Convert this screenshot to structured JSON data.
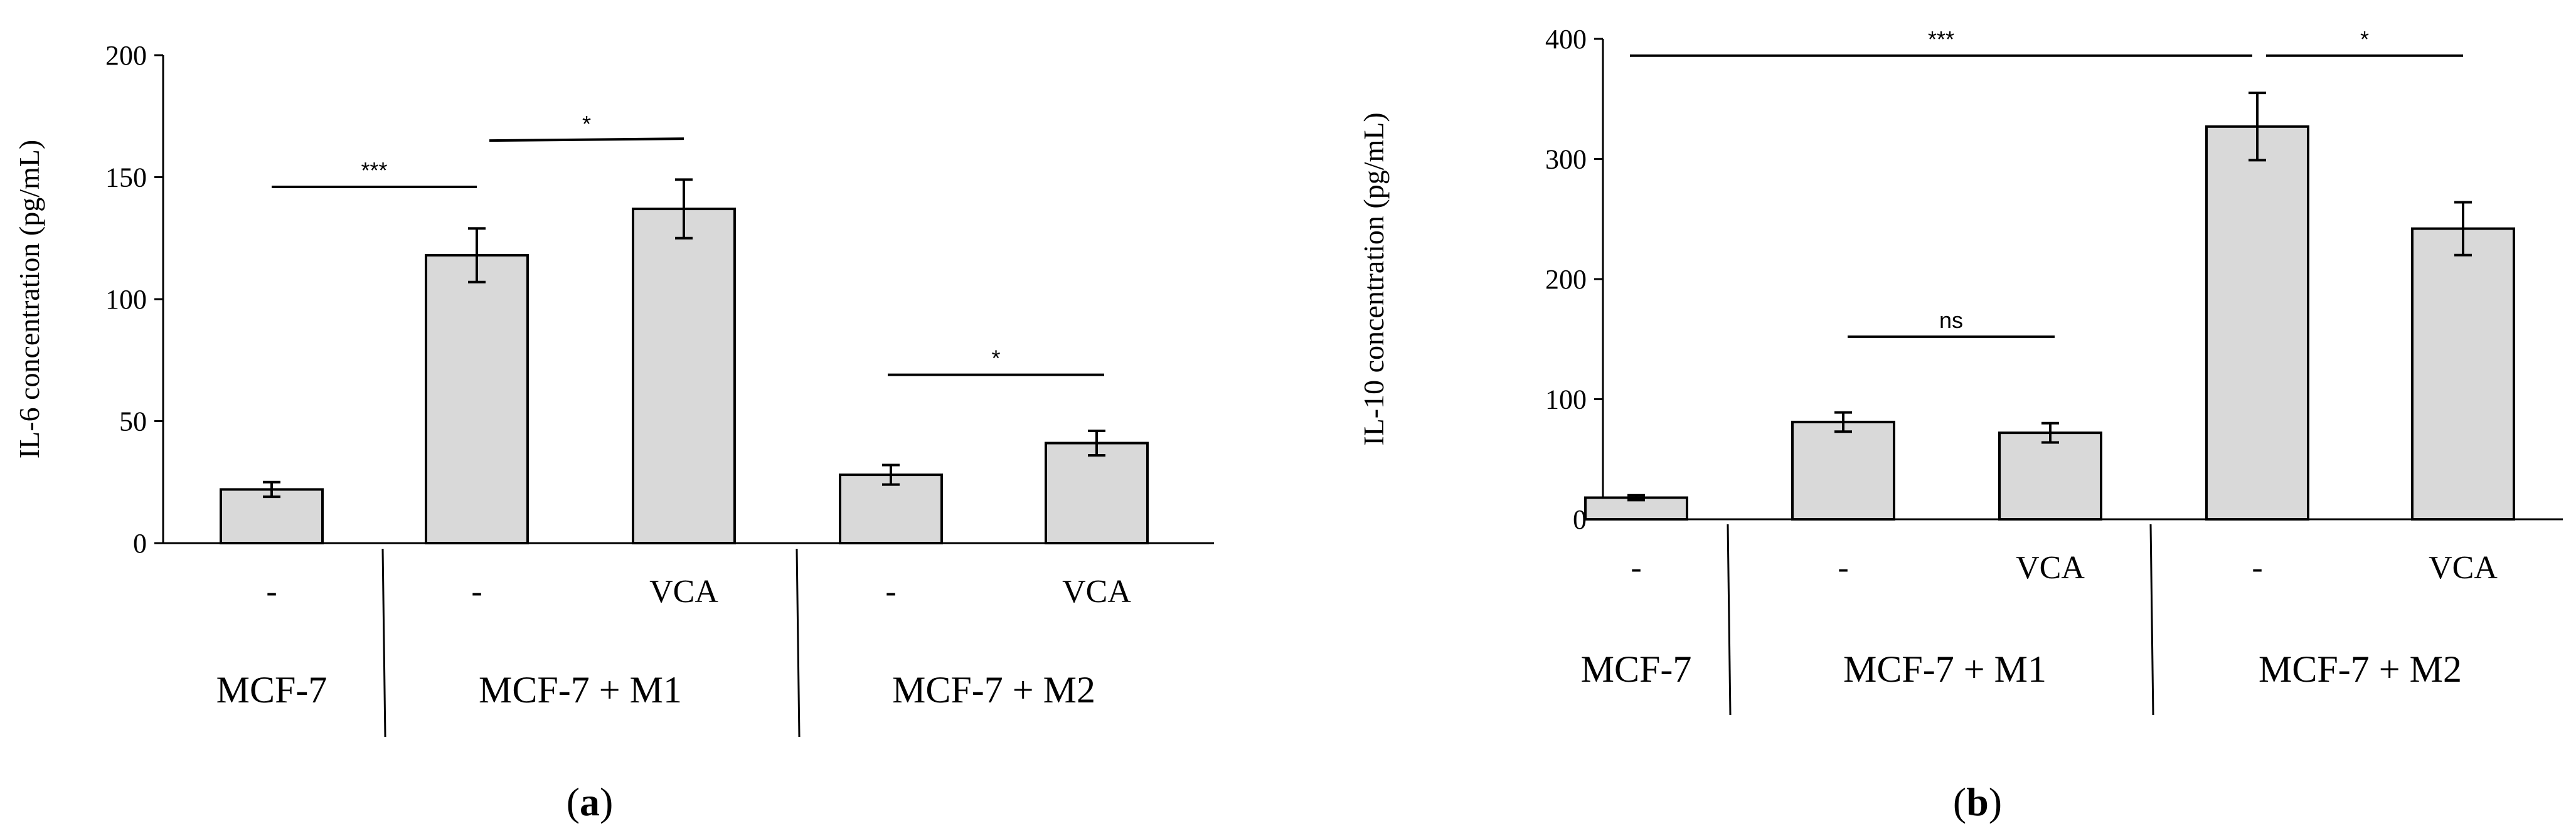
{
  "chart_data": [
    {
      "type": "bar",
      "panel_label": "a",
      "title": "",
      "xlabel": "",
      "ylabel": "IL-6 concentration (pg/mL)",
      "ylim": [
        0,
        200
      ],
      "yticks": [
        0,
        50,
        100,
        150,
        200
      ],
      "categories": [
        "-",
        "-",
        "VCA",
        "-",
        "VCA"
      ],
      "groups": [
        {
          "label": "MCF-7",
          "start": 0,
          "end": 0
        },
        {
          "label": "MCF-7 + M1",
          "start": 1,
          "end": 2
        },
        {
          "label": "MCF-7 + M2",
          "start": 3,
          "end": 4
        }
      ],
      "values": [
        22,
        118,
        137,
        28,
        41
      ],
      "errors": [
        3,
        11,
        12,
        4,
        5
      ],
      "significance": [
        {
          "label": "***",
          "from": 0,
          "to": 1,
          "y": 146
        },
        {
          "label": "*",
          "from": 1,
          "to": 2,
          "y": 165
        },
        {
          "label": "*",
          "from": 3,
          "to": 4,
          "y": 69
        }
      ],
      "bar_color": "#d9d9d9"
    },
    {
      "type": "bar",
      "panel_label": "b",
      "title": "",
      "xlabel": "",
      "ylabel": "IL-10 concentration (pg/mL)",
      "ylim": [
        0,
        400
      ],
      "yticks": [
        0,
        100,
        200,
        300,
        400
      ],
      "categories": [
        "-",
        "-",
        "VCA",
        "-",
        "VCA"
      ],
      "groups": [
        {
          "label": "MCF-7",
          "start": 0,
          "end": 0
        },
        {
          "label": "MCF-7 + M1",
          "start": 1,
          "end": 2
        },
        {
          "label": "MCF-7 + M2",
          "start": 3,
          "end": 4
        }
      ],
      "values": [
        18,
        81,
        72,
        327,
        242
      ],
      "errors": [
        2,
        8,
        8,
        28,
        22
      ],
      "significance": [
        {
          "label": "***",
          "from": 0,
          "to": 3,
          "y": 386
        },
        {
          "label": "*",
          "from": 3,
          "to": 4,
          "y": 386
        },
        {
          "label": "ns",
          "from": 1,
          "to": 2,
          "y": 152
        }
      ],
      "bar_color": "#d9d9d9"
    }
  ]
}
